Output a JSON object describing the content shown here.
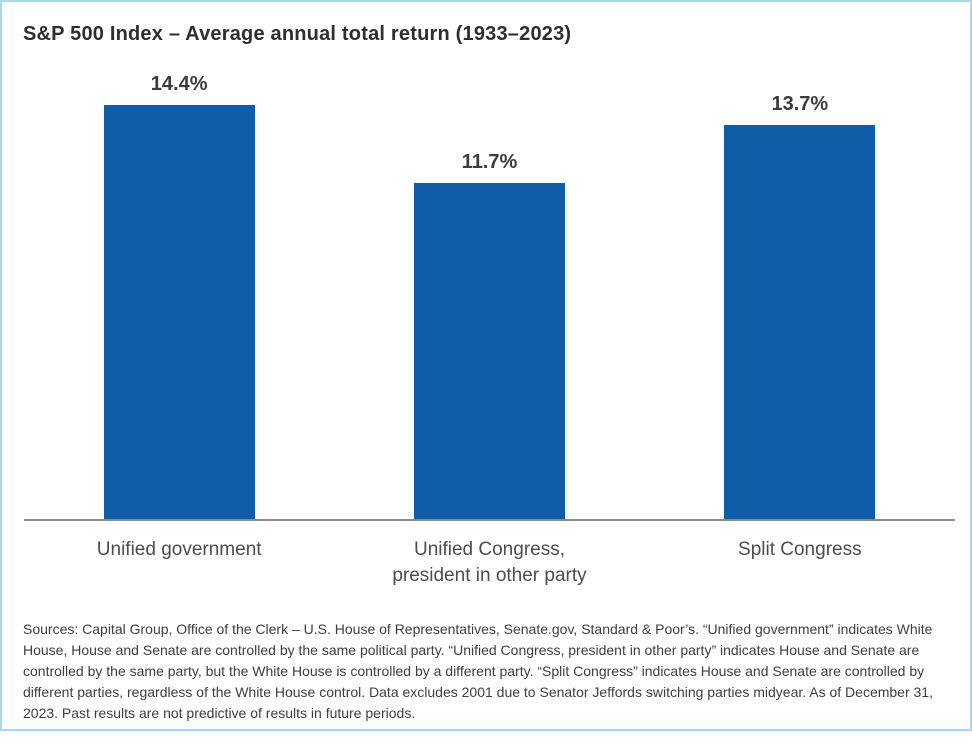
{
  "card": {
    "background": "#ffffff",
    "border_color": "#a6d9ec"
  },
  "chart_data": {
    "type": "bar",
    "title": "S&P 500 Index – Average annual total return (1933–2023)",
    "categories": [
      "Unified government",
      "Unified Congress,\npresident in other party",
      "Split Congress"
    ],
    "values": [
      14.4,
      11.7,
      13.7
    ],
    "value_labels": [
      "14.4%",
      "11.7%",
      "13.7%"
    ],
    "xlabel": "",
    "ylabel": "",
    "ylim": [
      0,
      15.6
    ],
    "grid": false,
    "legend": "none",
    "bar_color": "#0e5da6",
    "axis_line_color": "#8c8c8c"
  },
  "footnote": "Sources: Capital Group, Office of the Clerk – U.S. House of Representatives, Senate.gov, Standard & Poor’s. “Unified government” indicates White House, House and Senate are controlled by the same political party. “Unified Congress, president in other party” indicates House and Senate are controlled by the same party, but the White House is controlled by a different party. “Split Congress” indicates House and Senate are controlled by different parties, regardless of the White House control. Data excludes 2001 due to Senator Jeffords switching parties midyear. As of December 31, 2023. Past results are not predictive of results in future periods."
}
